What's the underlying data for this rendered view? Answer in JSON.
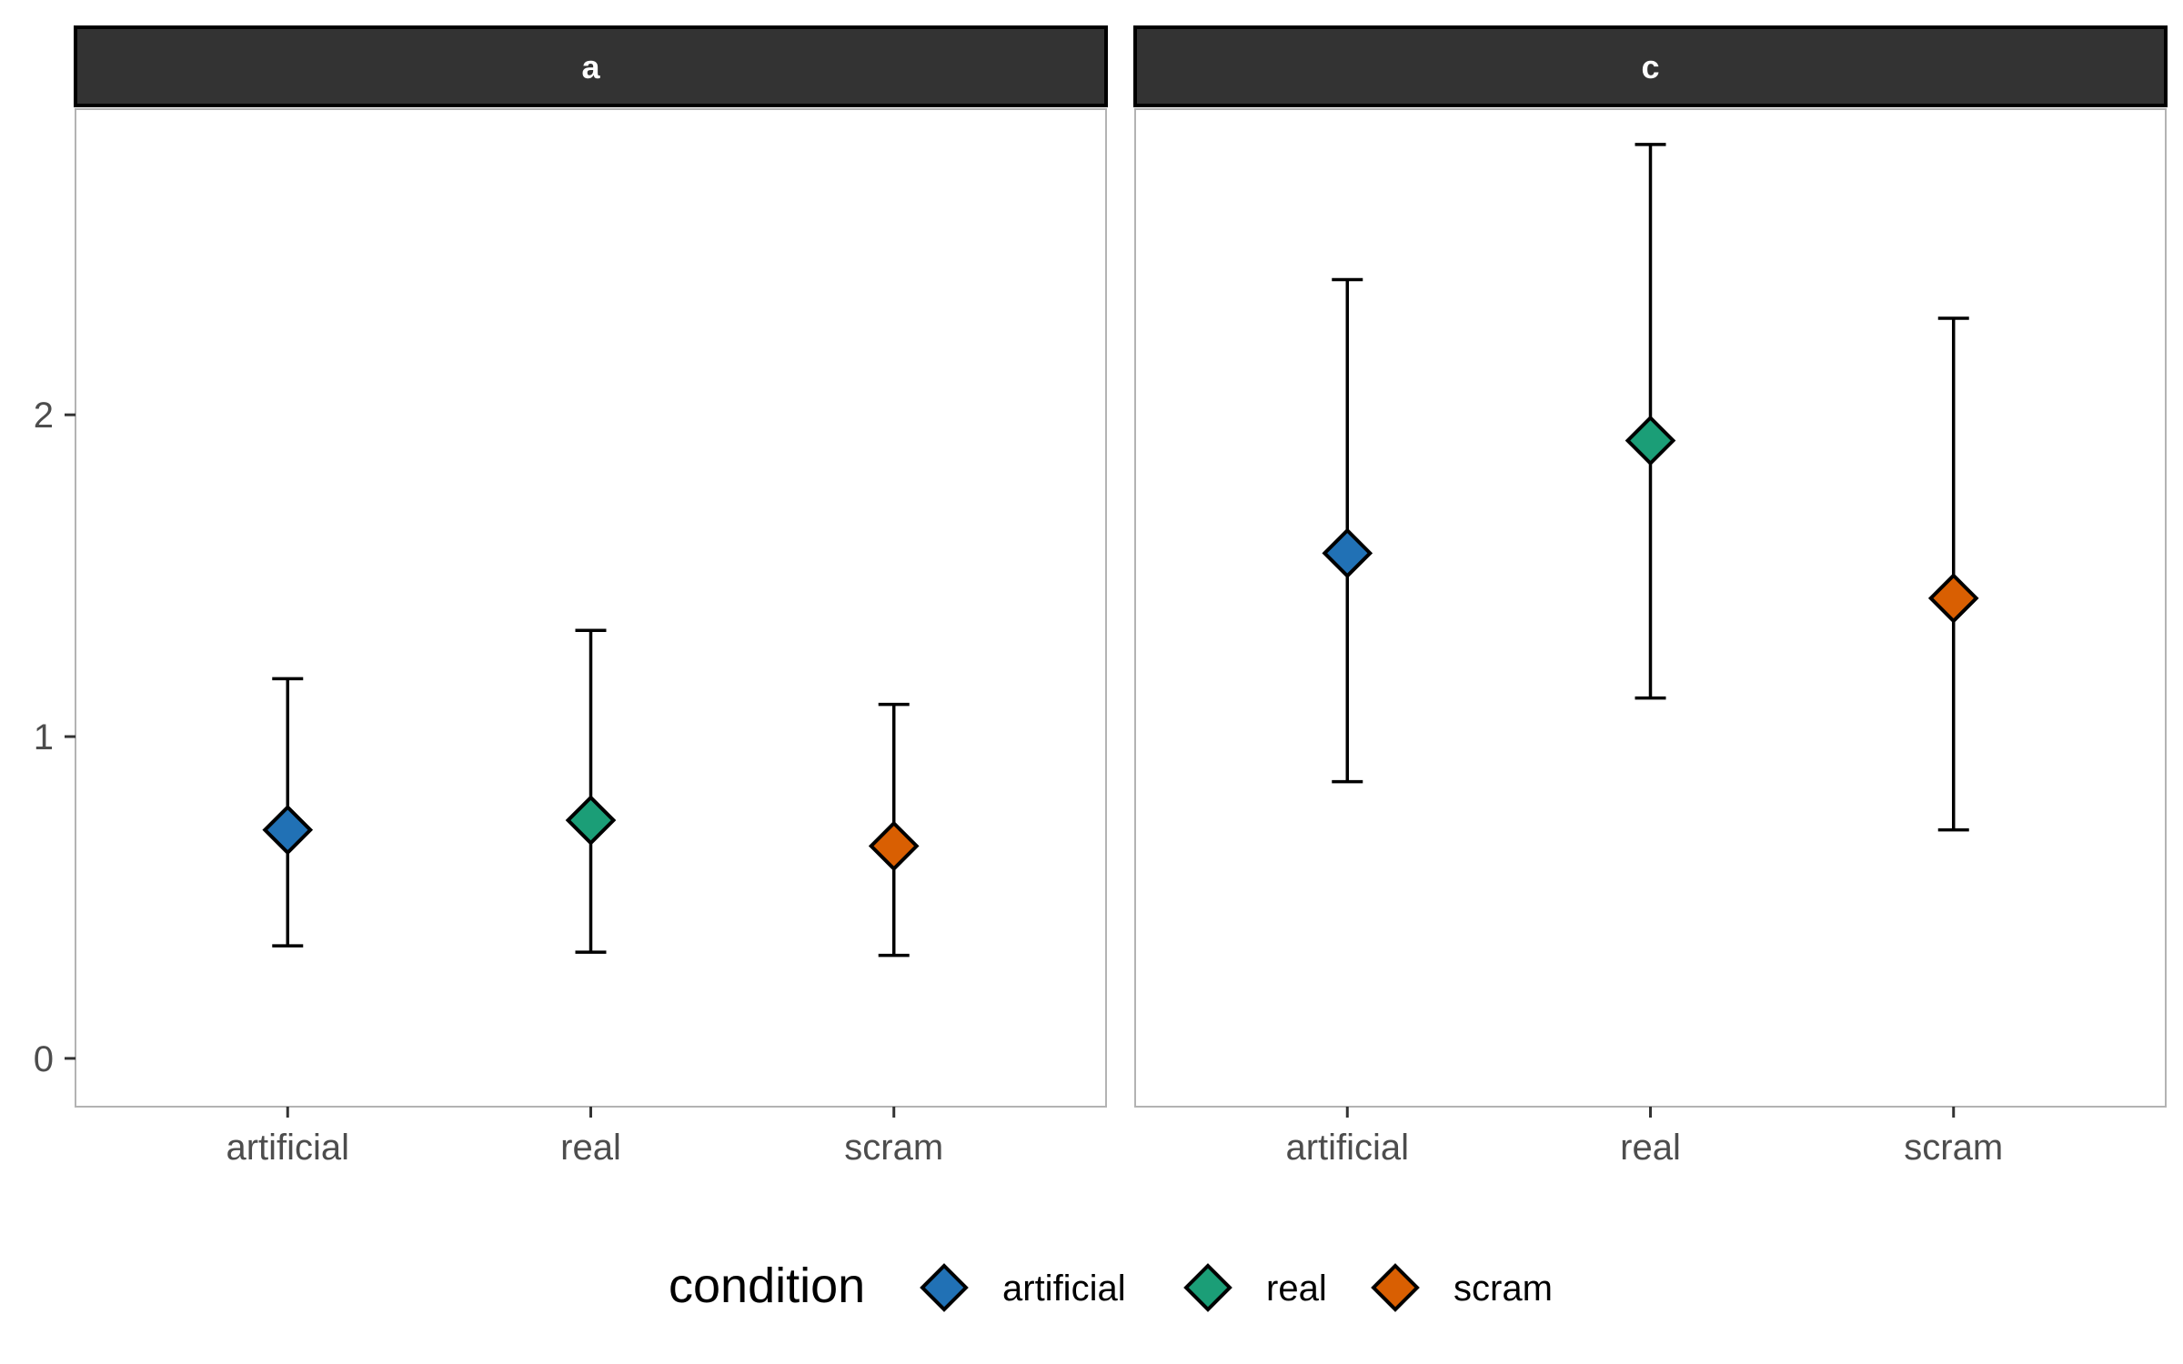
{
  "chart_data": {
    "type": "scatter",
    "subtype": "pointrange-faceted",
    "categories": [
      "artificial",
      "real",
      "scram"
    ],
    "ylim": [
      -0.15,
      2.95
    ],
    "yticks": [
      0,
      1,
      2
    ],
    "ytick_labels": [
      "0",
      "1",
      "2"
    ],
    "grid": false,
    "xlabel": "",
    "ylabel": "",
    "title": "",
    "legend": {
      "title": "condition",
      "position": "bottom",
      "entries": [
        "artificial",
        "real",
        "scram"
      ]
    },
    "colors": {
      "artificial": "#2171b5",
      "real": "#1b9e77",
      "scram": "#d95f02"
    },
    "facets": [
      {
        "label": "a",
        "points": [
          {
            "category": "artificial",
            "y": 0.71,
            "ymin": 0.35,
            "ymax": 1.18
          },
          {
            "category": "real",
            "y": 0.74,
            "ymin": 0.33,
            "ymax": 1.33
          },
          {
            "category": "scram",
            "y": 0.66,
            "ymin": 0.32,
            "ymax": 1.1
          }
        ]
      },
      {
        "label": "c",
        "points": [
          {
            "category": "artificial",
            "y": 1.57,
            "ymin": 0.86,
            "ymax": 2.42
          },
          {
            "category": "real",
            "y": 1.92,
            "ymin": 1.12,
            "ymax": 2.84
          },
          {
            "category": "scram",
            "y": 1.43,
            "ymin": 0.71,
            "ymax": 2.3
          }
        ]
      }
    ]
  }
}
